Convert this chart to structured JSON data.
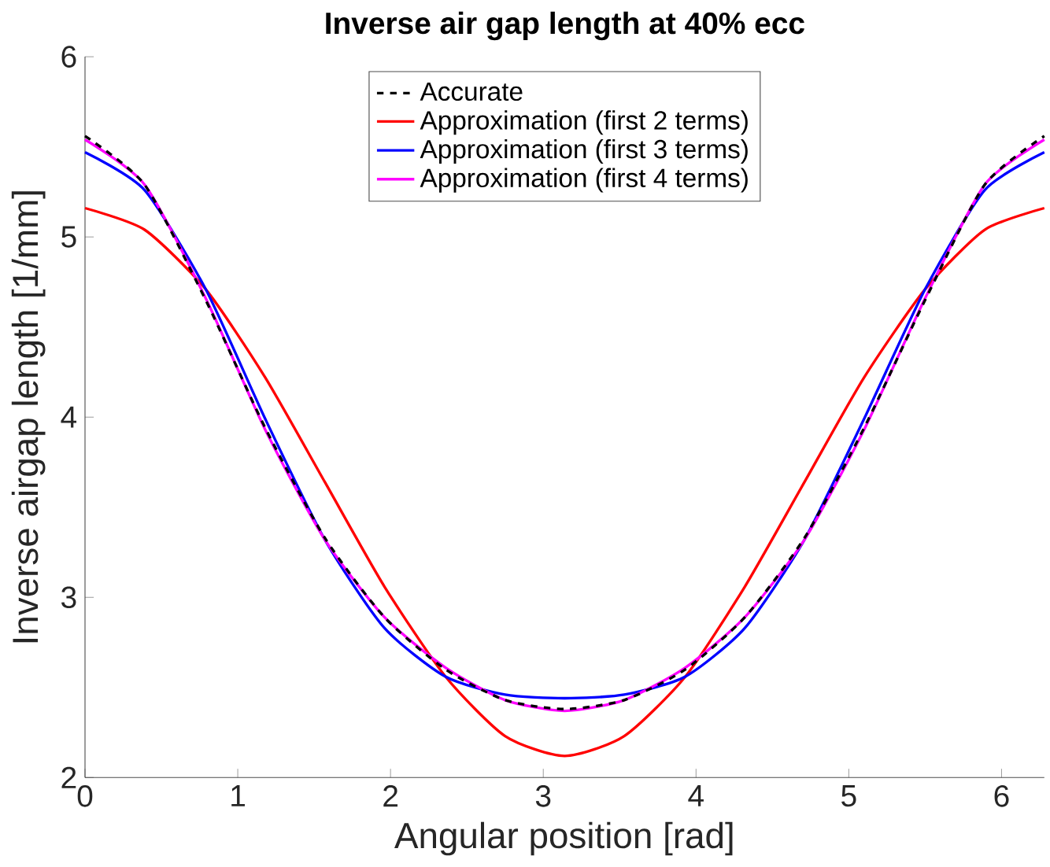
{
  "chart_data": {
    "type": "line",
    "title": "Inverse air gap length at 40% ecc",
    "xlabel": "Angular position [rad]",
    "ylabel": "Inverse airgap length [1/mm]",
    "x": [
      0,
      0.39,
      0.79,
      1.18,
      1.57,
      1.96,
      2.36,
      2.75,
      3.14,
      3.53,
      3.93,
      4.32,
      4.71,
      5.1,
      5.5,
      5.89,
      6.28
    ],
    "xlim": [
      0,
      6.28
    ],
    "xticks": [
      0,
      1,
      2,
      3,
      4,
      5,
      6
    ],
    "ylim": [
      2,
      6
    ],
    "yticks": [
      2,
      3,
      4,
      5,
      6
    ],
    "legend": "top",
    "grid": false,
    "series": [
      {
        "name": "Accurate",
        "color": "#000000",
        "line_style": "dashed",
        "values": [
          5.56,
          5.29,
          4.65,
          3.94,
          3.33,
          2.89,
          2.6,
          2.43,
          2.38,
          2.43,
          2.6,
          2.89,
          3.33,
          3.94,
          4.65,
          5.29,
          5.56
        ]
      },
      {
        "name": "Approximation (first 2 terms)",
        "color": "#ff0000",
        "line_style": "solid",
        "values": [
          5.16,
          5.04,
          4.71,
          4.22,
          3.64,
          3.06,
          2.56,
          2.23,
          2.12,
          2.23,
          2.56,
          3.06,
          3.64,
          4.22,
          4.71,
          5.04,
          5.16
        ]
      },
      {
        "name": "Approximation (first 3 terms)",
        "color": "#0000ff",
        "line_style": "solid",
        "values": [
          5.47,
          5.26,
          4.71,
          3.99,
          3.32,
          2.83,
          2.56,
          2.46,
          2.44,
          2.46,
          2.56,
          2.83,
          3.32,
          3.99,
          4.71,
          5.26,
          5.47
        ]
      },
      {
        "name": "Approximation (first 4 terms)",
        "color": "#ff00ff",
        "line_style": "solid",
        "values": [
          5.54,
          5.29,
          4.66,
          3.93,
          3.32,
          2.89,
          2.61,
          2.43,
          2.37,
          2.43,
          2.61,
          2.89,
          3.32,
          3.93,
          4.66,
          5.29,
          5.54
        ]
      }
    ]
  }
}
